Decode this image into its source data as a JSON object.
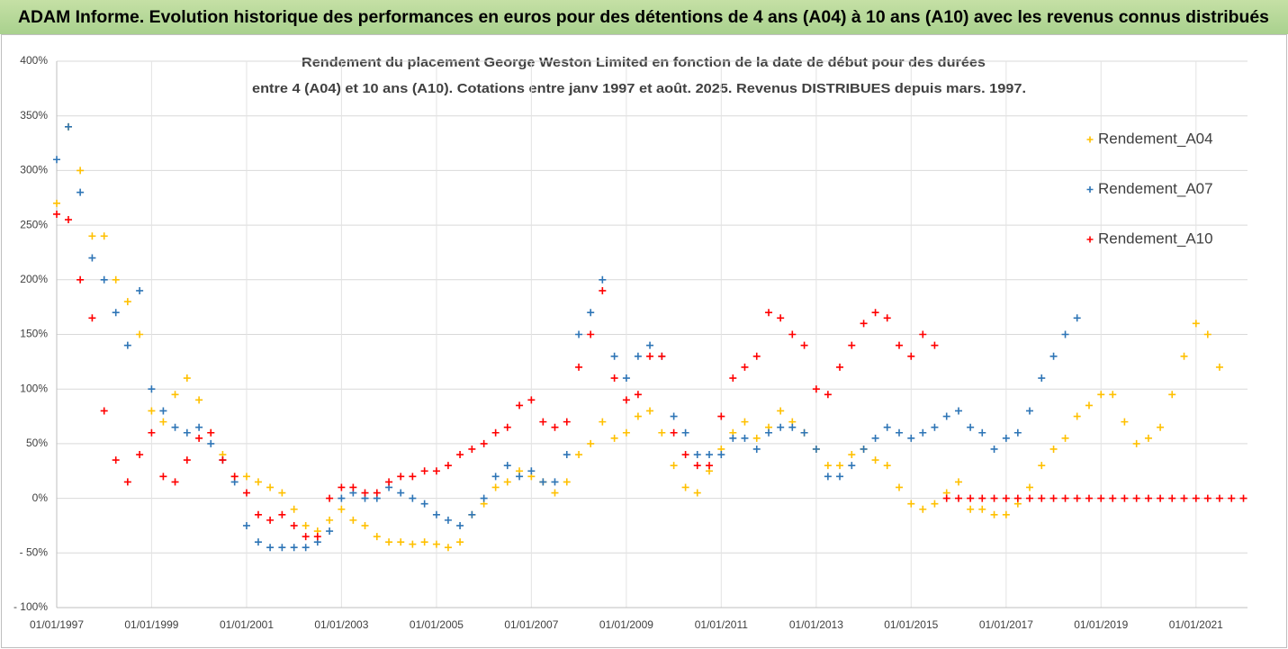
{
  "chart_data": {
    "type": "scatter",
    "title": "ADAM Informe. Evolution historique des performances en euros pour des détentions de 4 ans (A04) à 10 ans (A10) avec les revenus connus distribués",
    "subtitle": [
      "Rendement du placement George Weston Limited en fonction de la date de début pour des durées",
      "entre 4 (A04) et 10 ans (A10). Cotations entre janv 1997 et août. 2025. Revenus DISTRIBUES depuis mars. 1997."
    ],
    "x": [
      "01/01/1997",
      "01/04/1997",
      "01/07/1997",
      "01/10/1997",
      "01/01/1998",
      "01/04/1998",
      "01/07/1998",
      "01/10/1998",
      "01/01/1999",
      "01/04/1999",
      "01/07/1999",
      "01/10/1999",
      "01/01/2000",
      "01/04/2000",
      "01/07/2000",
      "01/10/2000",
      "01/01/2001",
      "01/04/2001",
      "01/07/2001",
      "01/10/2001",
      "01/01/2002",
      "01/04/2002",
      "01/07/2002",
      "01/10/2002",
      "01/01/2003",
      "01/04/2003",
      "01/07/2003",
      "01/10/2003",
      "01/01/2004",
      "01/04/2004",
      "01/07/2004",
      "01/10/2004",
      "01/01/2005",
      "01/04/2005",
      "01/07/2005",
      "01/10/2005",
      "01/01/2006",
      "01/04/2006",
      "01/07/2006",
      "01/10/2006",
      "01/01/2007",
      "01/04/2007",
      "01/07/2007",
      "01/10/2007",
      "01/01/2008",
      "01/04/2008",
      "01/07/2008",
      "01/10/2008",
      "01/01/2009",
      "01/04/2009",
      "01/07/2009",
      "01/10/2009",
      "01/01/2010",
      "01/04/2010",
      "01/07/2010",
      "01/10/2010",
      "01/01/2011",
      "01/04/2011",
      "01/07/2011",
      "01/10/2011",
      "01/01/2012",
      "01/04/2012",
      "01/07/2012",
      "01/10/2012",
      "01/01/2013",
      "01/04/2013",
      "01/07/2013",
      "01/10/2013",
      "01/01/2014",
      "01/04/2014",
      "01/07/2014",
      "01/10/2014",
      "01/01/2015",
      "01/04/2015",
      "01/07/2015",
      "01/10/2015",
      "01/01/2016",
      "01/04/2016",
      "01/07/2016",
      "01/10/2016",
      "01/01/2017",
      "01/04/2017",
      "01/07/2017",
      "01/10/2017",
      "01/01/2018",
      "01/04/2018",
      "01/07/2018",
      "01/10/2018",
      "01/01/2019",
      "01/04/2019",
      "01/07/2019",
      "01/10/2019",
      "01/01/2020",
      "01/04/2020",
      "01/07/2020",
      "01/10/2020",
      "01/01/2021",
      "01/04/2021",
      "01/07/2021",
      "01/10/2021",
      "01/01/2022"
    ],
    "series": [
      {
        "name": "Rendement_A04",
        "color": "#ffc000",
        "values": [
          270,
          340,
          300,
          240,
          240,
          200,
          180,
          150,
          80,
          70,
          95,
          110,
          90,
          60,
          40,
          20,
          20,
          15,
          10,
          5,
          -10,
          -25,
          -30,
          -20,
          -10,
          -20,
          -25,
          -35,
          -40,
          -40,
          -42,
          -40,
          -42,
          -45,
          -40,
          -15,
          -5,
          10,
          15,
          25,
          20,
          15,
          5,
          15,
          40,
          50,
          70,
          55,
          60,
          75,
          80,
          60,
          30,
          10,
          5,
          25,
          45,
          60,
          70,
          55,
          65,
          80,
          70,
          60,
          45,
          30,
          30,
          40,
          45,
          35,
          30,
          10,
          -5,
          -10,
          -5,
          5,
          15,
          -10,
          -10,
          -15,
          -15,
          -5,
          10,
          30,
          45,
          55,
          75,
          85,
          95,
          95,
          70,
          50,
          55,
          65,
          95,
          130,
          160,
          150,
          120,
          null,
          null
        ]
      },
      {
        "name": "Rendement_A07",
        "color": "#2e75b6",
        "values": [
          310,
          340,
          280,
          220,
          200,
          170,
          140,
          190,
          100,
          80,
          65,
          60,
          65,
          50,
          35,
          15,
          -25,
          -40,
          -45,
          -45,
          -45,
          -45,
          -40,
          -30,
          0,
          5,
          0,
          0,
          10,
          5,
          0,
          -5,
          -15,
          -20,
          -25,
          -15,
          0,
          20,
          30,
          20,
          25,
          15,
          15,
          40,
          150,
          170,
          200,
          130,
          110,
          130,
          140,
          130,
          75,
          60,
          40,
          40,
          40,
          55,
          55,
          45,
          60,
          65,
          65,
          60,
          45,
          20,
          20,
          30,
          45,
          55,
          65,
          60,
          55,
          60,
          65,
          75,
          80,
          65,
          60,
          45,
          55,
          60,
          80,
          110,
          130,
          150,
          165,
          null,
          null,
          null,
          null,
          null,
          null,
          null,
          null,
          null,
          null,
          null,
          null,
          null,
          null
        ]
      },
      {
        "name": "Rendement_A10",
        "color": "#ff0000",
        "values": [
          260,
          255,
          200,
          165,
          80,
          35,
          15,
          40,
          60,
          20,
          15,
          35,
          55,
          60,
          35,
          20,
          5,
          -15,
          -20,
          -15,
          -25,
          -35,
          -35,
          0,
          10,
          10,
          5,
          5,
          15,
          20,
          20,
          25,
          25,
          30,
          40,
          45,
          50,
          60,
          65,
          85,
          90,
          70,
          65,
          70,
          120,
          150,
          190,
          110,
          90,
          95,
          130,
          130,
          60,
          40,
          30,
          30,
          75,
          110,
          120,
          130,
          170,
          165,
          150,
          140,
          100,
          95,
          120,
          140,
          160,
          170,
          165,
          140,
          130,
          150,
          140,
          0,
          0,
          0,
          0,
          0,
          0,
          0,
          0,
          0,
          0,
          0,
          0,
          0,
          0,
          0,
          0,
          0,
          0,
          0,
          0,
          0,
          0,
          0,
          0,
          0,
          0
        ]
      }
    ],
    "xlim": [
      "01/01/1997",
      "01/02/2022"
    ],
    "xticks": [
      "01/01/1997",
      "01/01/1999",
      "01/01/2001",
      "01/01/2003",
      "01/01/2005",
      "01/01/2007",
      "01/01/2009",
      "01/01/2011",
      "01/01/2013",
      "01/01/2015",
      "01/01/2017",
      "01/01/2019",
      "01/01/2021"
    ],
    "ylim": [
      -100,
      400
    ],
    "yticks": [
      {
        "value": -100,
        "label": "- 100%"
      },
      {
        "value": -50,
        "label": "- 50%"
      },
      {
        "value": 0,
        "label": "0%"
      },
      {
        "value": 50,
        "label": "50%"
      },
      {
        "value": 100,
        "label": "100%"
      },
      {
        "value": 150,
        "label": "150%"
      },
      {
        "value": 200,
        "label": "200%"
      },
      {
        "value": 250,
        "label": "250%"
      },
      {
        "value": 300,
        "label": "300%"
      },
      {
        "value": 350,
        "label": "350%"
      },
      {
        "value": 400,
        "label": "400%"
      }
    ],
    "grid": true,
    "legend": "upper right"
  }
}
